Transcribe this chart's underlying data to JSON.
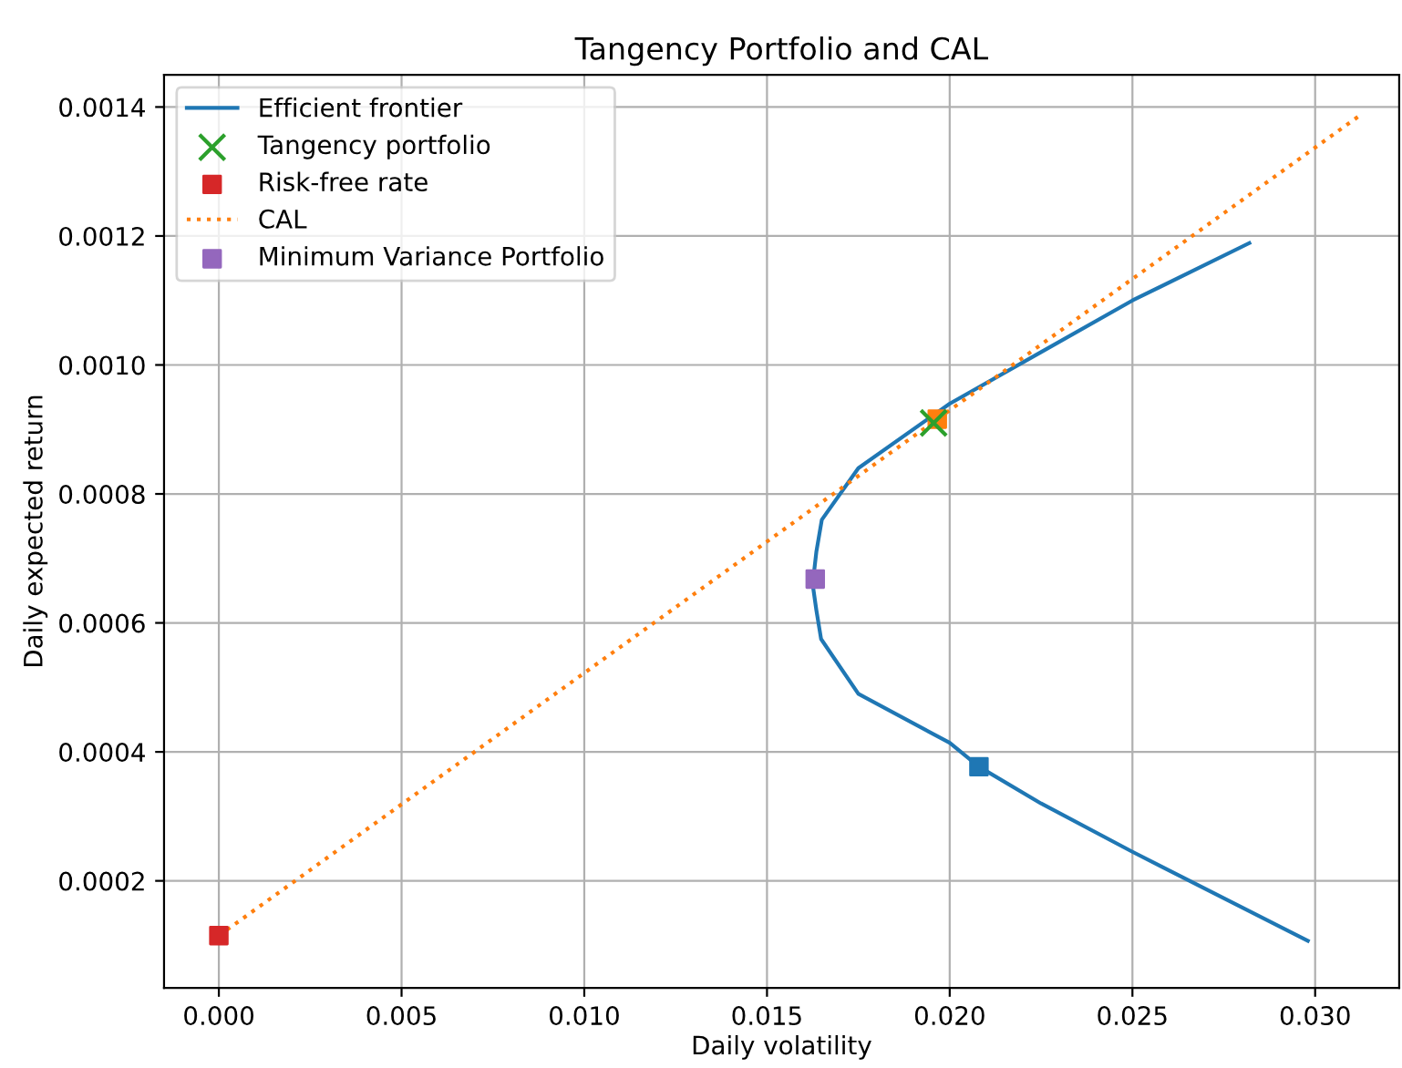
{
  "chart_data": {
    "type": "scatter",
    "title": "Tangency Portfolio and CAL",
    "xlabel": "Daily volatility",
    "ylabel": "Daily expected return",
    "xlim": [
      -0.0015,
      0.0323
    ],
    "ylim": [
      3.4e-05,
      0.00145
    ],
    "xticks": [
      {
        "value": 0,
        "label": "0.000"
      },
      {
        "value": 0.005,
        "label": "0.005"
      },
      {
        "value": 0.01,
        "label": "0.010"
      },
      {
        "value": 0.015,
        "label": "0.015"
      },
      {
        "value": 0.02,
        "label": "0.020"
      },
      {
        "value": 0.025,
        "label": "0.025"
      },
      {
        "value": 0.03,
        "label": "0.030"
      }
    ],
    "yticks": [
      {
        "value": 0.0002,
        "label": "0.0002"
      },
      {
        "value": 0.0004,
        "label": "0.0004"
      },
      {
        "value": 0.0006,
        "label": "0.0006"
      },
      {
        "value": 0.0008,
        "label": "0.0008"
      },
      {
        "value": 0.001,
        "label": "0.0010"
      },
      {
        "value": 0.0012,
        "label": "0.0012"
      },
      {
        "value": 0.0014,
        "label": "0.0014"
      }
    ],
    "grid": true,
    "legend": "top left",
    "series": [
      {
        "name": "Efficient frontier",
        "type": "line",
        "color": "#1f77b4",
        "line_style": "solid",
        "x": [
          0.0282,
          0.025,
          0.0225,
          0.02,
          0.0175,
          0.0165,
          0.01635,
          0.01625,
          0.01635,
          0.01648,
          0.0175,
          0.02,
          0.0208,
          0.0225,
          0.025,
          0.0298
        ],
        "values": [
          0.001189,
          0.0011,
          0.00102,
          0.00094,
          0.00084,
          0.00076,
          0.00071,
          0.00066,
          0.00062,
          0.000575,
          0.00049,
          0.000414,
          0.000377,
          0.00032,
          0.000245,
          0.000107
        ]
      },
      {
        "color": "#1f77b4",
        "marker": "square",
        "x": [
          0.0208
        ],
        "values": [
          0.000377
        ]
      },
      {
        "color": "#ff7f0e",
        "marker": "square",
        "x": [
          0.01966
        ],
        "values": [
          0.000916
        ]
      },
      {
        "name": "Tangency portfolio",
        "color": "#2ca02c",
        "marker": "cross",
        "x": [
          0.01956
        ],
        "values": [
          0.00091
        ]
      },
      {
        "name": "Risk-free rate",
        "color": "#d62728",
        "marker": "square",
        "x": [
          0
        ],
        "values": [
          0.000115
        ]
      },
      {
        "name": "CAL",
        "type": "line",
        "color": "#ff7f0e",
        "line_style": "dotted",
        "x": [
          0,
          0.0312
        ],
        "values": [
          0.000115,
          0.001386
        ]
      },
      {
        "name": "Minimum Variance Portfolio",
        "color": "#9467bd",
        "marker": "square",
        "x": [
          0.01632
        ],
        "values": [
          0.000668
        ]
      }
    ]
  }
}
